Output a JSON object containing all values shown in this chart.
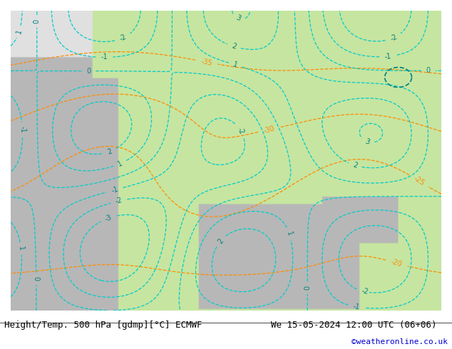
{
  "title_left": "Height/Temp. 500 hPa [gdmp][°C] ECMWF",
  "title_right": "We 15-05-2024 12:00 UTC (06+06)",
  "credit": "©weatheronline.co.uk",
  "land_color": [
    0.78,
    0.9,
    0.63
  ],
  "sea_color": [
    0.72,
    0.72,
    0.72
  ],
  "contour_color_z500": "#000000",
  "contour_color_temp_neg": "#ff8c00",
  "contour_color_cyan": "#00cccc",
  "label_color_z500": "#000000",
  "label_color_temp": "#ff8c00",
  "label_color_cyan": "#008080",
  "font_size_labels": 8,
  "font_size_title": 9,
  "font_size_credit": 8,
  "figsize": [
    6.34,
    4.9
  ],
  "dpi": 100
}
